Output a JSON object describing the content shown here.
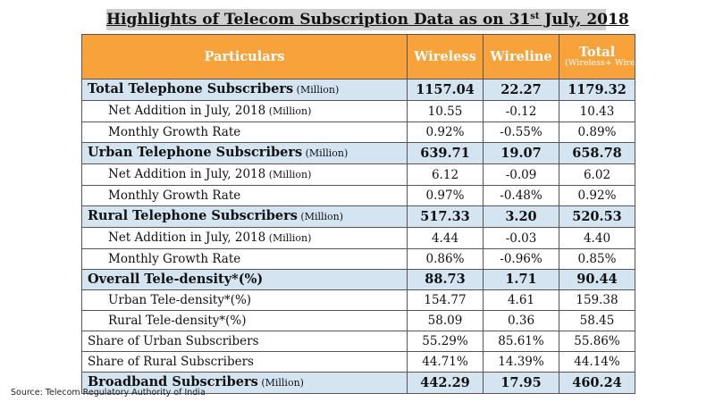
{
  "title": {
    "main": "Highlights of Telecom Subscription Data as on 31",
    "sup": "st",
    "tail": " July, 2018"
  },
  "columns": {
    "particulars": "Particulars",
    "wireless": "Wireless",
    "wireline": "Wireline",
    "total": "Total",
    "total_sub": "(Wireless+ Wireline)"
  },
  "rows": [
    {
      "label": "Total Telephone Subscribers",
      "unit": " (Million)",
      "highlight": true,
      "indent": false,
      "wireless": "1157.04",
      "wireline": "22.27",
      "total": "1179.32"
    },
    {
      "label": "Net Addition in July, 2018",
      "unit": " (Million)",
      "highlight": false,
      "indent": true,
      "wireless": "10.55",
      "wireline": "-0.12",
      "total": "10.43"
    },
    {
      "label": "Monthly Growth Rate",
      "unit": "",
      "highlight": false,
      "indent": true,
      "wireless": "0.92%",
      "wireline": "-0.55%",
      "total": "0.89%"
    },
    {
      "label": "Urban Telephone Subscribers",
      "unit": " (Million)",
      "highlight": true,
      "indent": false,
      "wireless": "639.71",
      "wireline": "19.07",
      "total": "658.78"
    },
    {
      "label": "Net Addition in July, 2018",
      "unit": " (Million)",
      "highlight": false,
      "indent": true,
      "wireless": "6.12",
      "wireline": "-0.09",
      "total": "6.02"
    },
    {
      "label": "Monthly Growth Rate",
      "unit": "",
      "highlight": false,
      "indent": true,
      "wireless": "0.97%",
      "wireline": "-0.48%",
      "total": "0.92%"
    },
    {
      "label": "Rural Telephone Subscribers",
      "unit": " (Million)",
      "highlight": true,
      "indent": false,
      "wireless": "517.33",
      "wireline": "3.20",
      "total": "520.53"
    },
    {
      "label": "Net Addition in July, 2018",
      "unit": " (Million)",
      "highlight": false,
      "indent": true,
      "wireless": "4.44",
      "wireline": "-0.03",
      "total": "4.40"
    },
    {
      "label": "Monthly Growth Rate",
      "unit": "",
      "highlight": false,
      "indent": true,
      "wireless": "0.86%",
      "wireline": "-0.96%",
      "total": "0.85%"
    },
    {
      "label": "Overall Tele-density*(%)",
      "unit": "",
      "highlight": true,
      "indent": false,
      "wireless": "88.73",
      "wireline": "1.71",
      "total": "90.44"
    },
    {
      "label": "Urban Tele-density*(%)",
      "unit": "",
      "highlight": false,
      "indent": true,
      "wireless": "154.77",
      "wireline": "4.61",
      "total": "159.38"
    },
    {
      "label": "Rural Tele-density*(%)",
      "unit": "",
      "highlight": false,
      "indent": true,
      "wireless": "58.09",
      "wireline": "0.36",
      "total": "58.45"
    },
    {
      "label": "Share of Urban Subscribers",
      "unit": "",
      "highlight": false,
      "indent": false,
      "wireless": "55.29%",
      "wireline": "85.61%",
      "total": "55.86%"
    },
    {
      "label": "Share of Rural Subscribers",
      "unit": "",
      "highlight": false,
      "indent": false,
      "wireless": "44.71%",
      "wireline": "14.39%",
      "total": "44.14%"
    },
    {
      "label": "Broadband Subscribers",
      "unit": " (Million)",
      "highlight": true,
      "indent": false,
      "wireless": "442.29",
      "wireline": "17.95",
      "total": "460.24"
    }
  ],
  "source": "Source: Telecom Regulatory Authority of India",
  "colors": {
    "header_bg": "#f7a23b",
    "highlight_row_bg": "#d5e4f1",
    "title_bg": "#cfcfcf"
  }
}
